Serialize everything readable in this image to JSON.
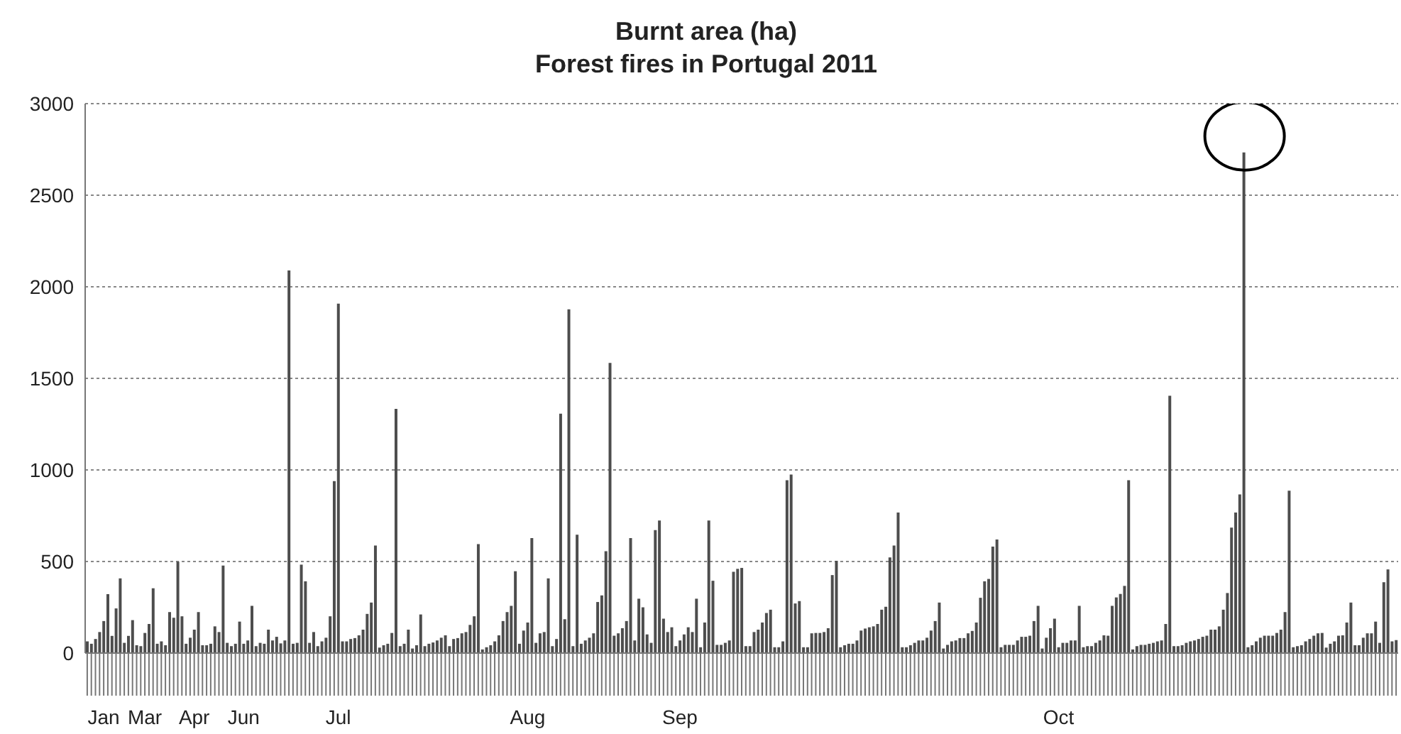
{
  "chart_data": {
    "type": "bar",
    "title": "Burnt area (ha)",
    "subtitle": "Forest fires in Portugal 2011",
    "categories": [
      null,
      null,
      null,
      null,
      "Jan",
      null,
      null,
      null,
      null,
      null,
      null,
      null,
      null,
      null,
      "Mar",
      null,
      null,
      null,
      null,
      null,
      null,
      null,
      null,
      null,
      null,
      null,
      "Apr",
      null,
      null,
      null,
      null,
      null,
      null,
      null,
      null,
      null,
      null,
      null,
      "Jun",
      null,
      null,
      null,
      null,
      null,
      null,
      null,
      null,
      null,
      null,
      null,
      null,
      null,
      null,
      null,
      null,
      null,
      null,
      null,
      null,
      null,
      null,
      "Jul",
      null,
      null,
      null,
      null,
      null,
      null,
      null,
      null,
      null,
      null,
      null,
      null,
      null,
      null,
      null,
      null,
      null,
      null,
      null,
      null,
      null,
      null,
      null,
      null,
      null,
      null,
      null,
      null,
      null,
      null,
      null,
      null,
      null,
      null,
      null,
      null,
      null,
      null,
      null,
      null,
      null,
      null,
      null,
      null,
      null,
      "Aug",
      null,
      null,
      null,
      null,
      null,
      null,
      null,
      null,
      null,
      null,
      null,
      null,
      null,
      null,
      null,
      null,
      null,
      null,
      null,
      null,
      null,
      null,
      null,
      null,
      null,
      null,
      null,
      null,
      null,
      null,
      null,
      null,
      null,
      null,
      null,
      null,
      "Sep",
      null,
      null,
      null,
      null,
      null,
      null,
      null,
      null,
      null,
      null,
      null,
      null,
      null,
      null,
      null,
      null,
      null,
      null,
      null,
      null,
      null,
      null,
      null,
      null,
      null,
      null,
      null,
      null,
      null,
      null,
      null,
      null,
      null,
      null,
      null,
      null,
      null,
      null,
      null,
      null,
      null,
      null,
      null,
      null,
      null,
      null,
      null,
      null,
      null,
      null,
      null,
      null,
      null,
      null,
      null,
      null,
      null,
      null,
      null,
      null,
      null,
      null,
      null,
      null,
      null,
      null,
      null,
      null,
      null,
      null,
      null,
      null,
      null,
      null,
      null,
      null,
      null,
      null,
      null,
      null,
      null,
      null,
      null,
      null,
      null,
      null,
      null,
      null,
      null,
      null,
      null,
      "Oct",
      null,
      null,
      null,
      null,
      null,
      null,
      null,
      null,
      null,
      null,
      null,
      null,
      null,
      null,
      null,
      null,
      null,
      null,
      null,
      null,
      null,
      null,
      null,
      null,
      null,
      null,
      null,
      null,
      null,
      null,
      null,
      null,
      null,
      null,
      null,
      null,
      null,
      null,
      null,
      null,
      null,
      null,
      null,
      null,
      null,
      null,
      null,
      null,
      null,
      null,
      null,
      null,
      null,
      null,
      null,
      null,
      null,
      null,
      null,
      null,
      null,
      null,
      null,
      null,
      null,
      null,
      null,
      null,
      null,
      null,
      null,
      null,
      null,
      null,
      null,
      null,
      null,
      null,
      null,
      null,
      null,
      null
    ],
    "values": [
      60,
      47,
      73,
      111,
      171,
      318,
      90,
      240,
      404,
      52,
      90,
      176,
      39,
      34,
      106,
      155,
      350,
      47,
      60,
      39,
      220,
      189,
      495,
      197,
      47,
      80,
      124,
      220,
      39,
      39,
      47,
      142,
      111,
      474,
      52,
      34,
      47,
      168,
      47,
      65,
      254,
      34,
      52,
      47,
      124,
      65,
      85,
      49,
      65,
      2085,
      47,
      52,
      479,
      388,
      52,
      111,
      34,
      60,
      80,
      197,
      935,
      1904,
      60,
      60,
      73,
      78,
      93,
      124,
      210,
      272,
      583,
      26,
      39,
      47,
      106,
      1329,
      34,
      47,
      124,
      21,
      39,
      207,
      34,
      47,
      54,
      65,
      80,
      93,
      34,
      73,
      78,
      104,
      111,
      150,
      197,
      591,
      16,
      28,
      39,
      60,
      93,
      171,
      220,
      254,
      443,
      47,
      119,
      163,
      624,
      52,
      104,
      111,
      404,
      34,
      73,
      1303,
      181,
      1873,
      34,
      642,
      47,
      65,
      80,
      104,
      275,
      311,
      552,
      1580,
      91,
      104,
      132,
      171,
      624,
      65,
      293,
      246,
      98,
      52,
      668,
      720,
      184,
      111,
      137,
      34,
      65,
      98,
      137,
      111,
      293,
      28,
      163,
      720,
      391,
      41,
      41,
      52,
      65,
      440,
      456,
      461,
      34,
      34,
      111,
      124,
      163,
      215,
      233,
      28,
      28,
      60,
      940,
      971,
      267,
      280,
      28,
      28,
      104,
      106,
      106,
      111,
      132,
      422,
      500,
      28,
      39,
      47,
      47,
      65,
      119,
      130,
      137,
      142,
      155,
      233,
      249,
      518,
      583,
      764,
      28,
      28,
      39,
      52,
      65,
      65,
      80,
      119,
      171,
      272,
      21,
      41,
      60,
      65,
      78,
      78,
      104,
      117,
      163,
      298,
      388,
      401,
      578,
      616,
      28,
      41,
      41,
      41,
      65,
      85,
      85,
      91,
      171,
      254,
      21,
      80,
      132,
      184,
      28,
      52,
      52,
      65,
      65,
      254,
      28,
      34,
      34,
      52,
      65,
      93,
      91,
      254,
      300,
      319,
      363,
      940,
      16,
      34,
      41,
      41,
      47,
      52,
      60,
      65,
      155,
      1401,
      34,
      34,
      39,
      52,
      60,
      65,
      73,
      85,
      91,
      124,
      124,
      142,
      233,
      324,
      681,
      764,
      862,
      2730,
      28,
      39,
      60,
      80,
      91,
      91,
      91,
      106,
      124,
      220,
      883,
      28,
      34,
      39,
      60,
      73,
      91,
      104,
      106,
      26,
      47,
      60,
      91,
      93,
      163,
      272,
      39,
      39,
      80,
      104,
      104,
      168,
      52,
      383,
      453,
      60,
      67
    ],
    "color": "#4d4d4d",
    "ylim": [
      0,
      3000
    ],
    "yticks": [
      0,
      500,
      1000,
      1500,
      2000,
      2500,
      3000
    ],
    "grid": "y"
  }
}
